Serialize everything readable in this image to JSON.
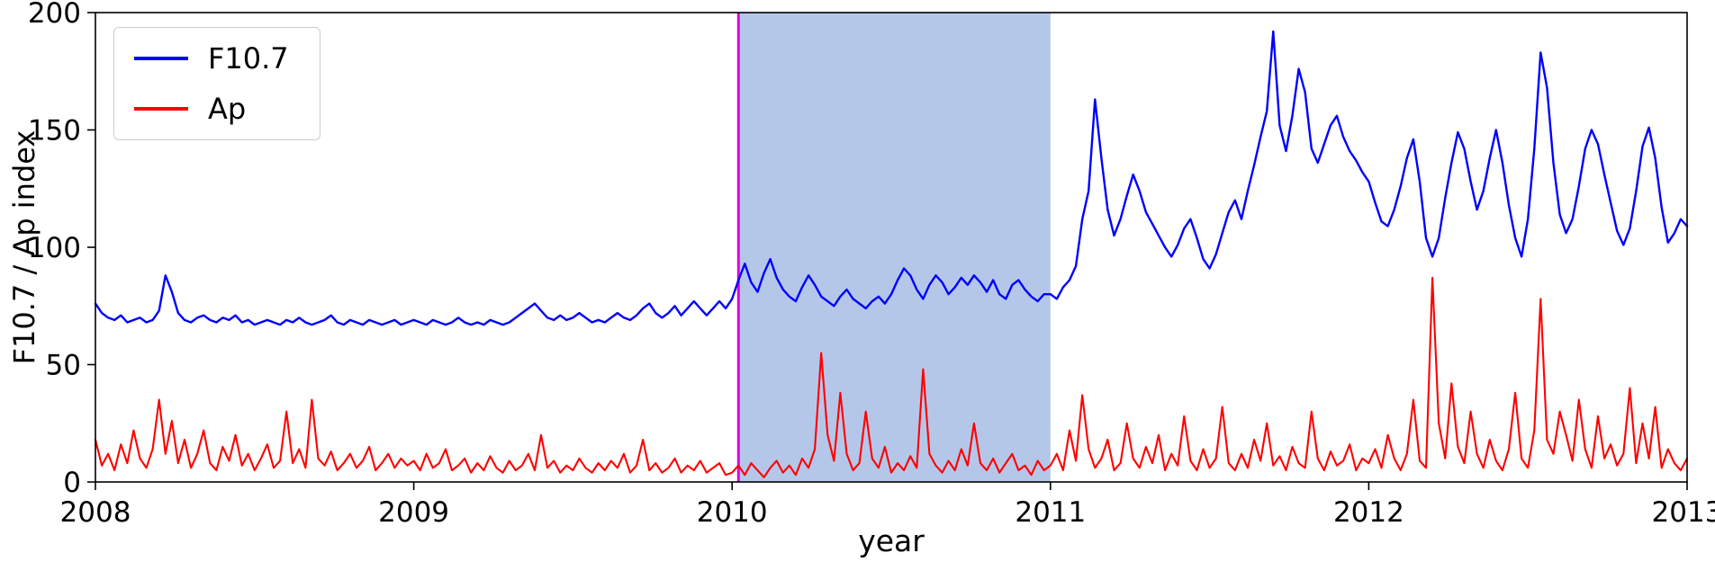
{
  "chart_data": {
    "type": "line",
    "title": "",
    "xlabel": "year",
    "ylabel": "F10.7 / Ap index",
    "xlim": [
      2008,
      2013
    ],
    "ylim": [
      0,
      200
    ],
    "x_ticks": [
      2008,
      2009,
      2010,
      2011,
      2012,
      2013
    ],
    "y_ticks": [
      0,
      50,
      100,
      150,
      200
    ],
    "grid": false,
    "legend_position": "upper left",
    "annotations": {
      "shaded_span": {
        "x_start": 2010.02,
        "x_end": 2011.0,
        "color": "#b5c7e9"
      },
      "vline": {
        "x": 2010.02,
        "color": "#dd00dd"
      }
    },
    "x_start": 2008.0,
    "x_step": 0.02,
    "series": [
      {
        "name": "F10.7",
        "color": "#0000ff",
        "values": [
          76,
          72,
          70,
          69,
          71,
          68,
          69,
          70,
          68,
          69,
          73,
          88,
          81,
          72,
          69,
          68,
          70,
          71,
          69,
          68,
          70,
          69,
          71,
          68,
          69,
          67,
          68,
          69,
          68,
          67,
          69,
          68,
          70,
          68,
          67,
          68,
          69,
          71,
          68,
          67,
          69,
          68,
          67,
          69,
          68,
          67,
          68,
          69,
          67,
          68,
          69,
          68,
          67,
          69,
          68,
          67,
          68,
          70,
          68,
          67,
          68,
          67,
          69,
          68,
          67,
          68,
          70,
          72,
          74,
          76,
          73,
          70,
          69,
          71,
          69,
          70,
          72,
          70,
          68,
          69,
          68,
          70,
          72,
          70,
          69,
          71,
          74,
          76,
          72,
          70,
          72,
          75,
          71,
          74,
          77,
          74,
          71,
          74,
          77,
          74,
          78,
          86,
          93,
          85,
          81,
          89,
          95,
          87,
          82,
          79,
          77,
          83,
          88,
          84,
          79,
          77,
          75,
          79,
          82,
          78,
          76,
          74,
          77,
          79,
          76,
          80,
          86,
          91,
          88,
          82,
          78,
          84,
          88,
          85,
          80,
          83,
          87,
          84,
          88,
          85,
          81,
          86,
          80,
          78,
          84,
          86,
          82,
          79,
          77,
          80,
          80,
          78,
          83,
          86,
          92,
          112,
          124,
          163,
          138,
          116,
          105,
          112,
          122,
          131,
          124,
          115,
          110,
          105,
          100,
          96,
          101,
          108,
          112,
          104,
          95,
          91,
          97,
          106,
          115,
          120,
          112,
          124,
          135,
          147,
          158,
          192,
          152,
          141,
          156,
          176,
          166,
          142,
          136,
          144,
          152,
          156,
          147,
          141,
          137,
          132,
          128,
          119,
          111,
          109,
          116,
          126,
          138,
          146,
          128,
          104,
          96,
          104,
          121,
          136,
          149,
          142,
          128,
          116,
          124,
          138,
          150,
          136,
          118,
          104,
          96,
          112,
          142,
          183,
          168,
          136,
          114,
          106,
          112,
          126,
          142,
          150,
          144,
          131,
          119,
          107,
          101,
          108,
          124,
          143,
          151,
          138,
          117,
          102,
          106,
          112,
          109
        ]
      },
      {
        "name": "Ap",
        "color": "#ff0000",
        "values": [
          18,
          7,
          12,
          5,
          16,
          8,
          22,
          10,
          6,
          14,
          35,
          12,
          26,
          8,
          18,
          6,
          12,
          22,
          8,
          5,
          15,
          9,
          20,
          7,
          12,
          5,
          10,
          16,
          6,
          9,
          30,
          8,
          14,
          6,
          35,
          10,
          7,
          13,
          5,
          8,
          12,
          6,
          9,
          15,
          5,
          8,
          12,
          6,
          10,
          7,
          9,
          5,
          12,
          6,
          8,
          14,
          5,
          7,
          10,
          4,
          8,
          5,
          11,
          6,
          4,
          9,
          5,
          7,
          12,
          5,
          20,
          6,
          9,
          4,
          7,
          5,
          10,
          6,
          4,
          8,
          5,
          9,
          6,
          12,
          4,
          7,
          18,
          5,
          8,
          4,
          6,
          10,
          4,
          7,
          5,
          9,
          4,
          6,
          8,
          3,
          4,
          7,
          3,
          8,
          5,
          2,
          6,
          9,
          4,
          7,
          3,
          10,
          6,
          14,
          55,
          20,
          9,
          38,
          12,
          5,
          8,
          30,
          10,
          6,
          15,
          4,
          8,
          5,
          11,
          6,
          48,
          12,
          7,
          4,
          9,
          5,
          14,
          7,
          25,
          8,
          5,
          10,
          4,
          8,
          12,
          5,
          7,
          3,
          9,
          5,
          7,
          12,
          5,
          22,
          9,
          37,
          14,
          6,
          10,
          18,
          5,
          8,
          25,
          10,
          6,
          15,
          8,
          20,
          5,
          12,
          7,
          28,
          9,
          5,
          14,
          6,
          10,
          32,
          8,
          5,
          12,
          6,
          18,
          9,
          25,
          7,
          11,
          5,
          15,
          8,
          6,
          30,
          10,
          5,
          13,
          7,
          9,
          16,
          5,
          10,
          8,
          14,
          6,
          20,
          10,
          5,
          12,
          35,
          9,
          6,
          87,
          25,
          10,
          42,
          15,
          8,
          30,
          12,
          6,
          18,
          9,
          5,
          14,
          38,
          10,
          6,
          22,
          78,
          18,
          12,
          30,
          20,
          9,
          35,
          14,
          6,
          28,
          10,
          16,
          7,
          12,
          40,
          8,
          25,
          10,
          32,
          6,
          14,
          8,
          5,
          10
        ]
      }
    ]
  }
}
